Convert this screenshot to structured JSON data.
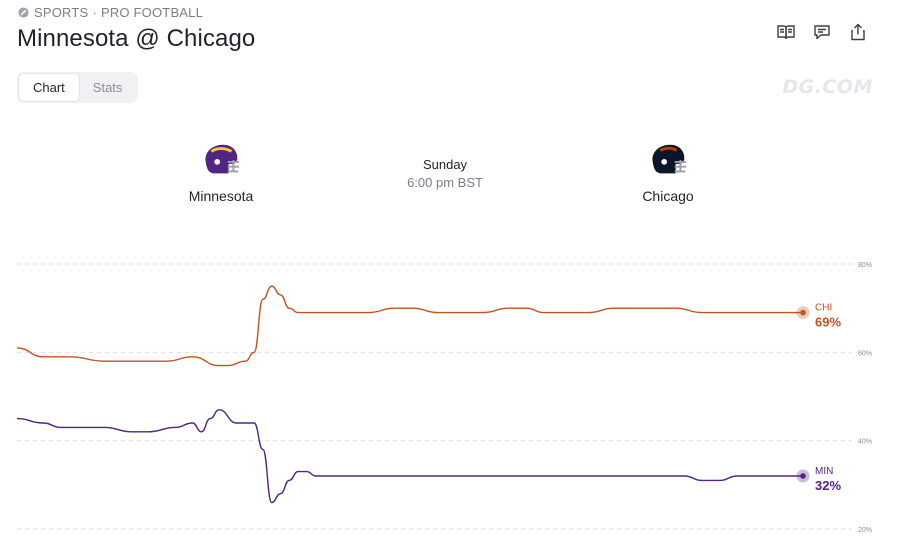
{
  "breadcrumb": {
    "category": "SPORTS",
    "separator": "·",
    "league": "PRO FOOTBALL",
    "icon": "football-icon"
  },
  "title": "Minnesota @ Chicago",
  "tabs": [
    {
      "label": "Chart",
      "active": true
    },
    {
      "label": "Stats",
      "active": false
    }
  ],
  "watermark": "DG.COM",
  "header_icons": [
    "book-icon",
    "comment-icon",
    "share-icon"
  ],
  "game": {
    "away": {
      "name": "Minnesota",
      "helmet_color": "#4f2683",
      "accent": "#ffc62f"
    },
    "home": {
      "name": "Chicago",
      "helmet_color": "#0b162a",
      "accent": "#c83803"
    },
    "day": "Sunday",
    "time": "6:00 pm BST"
  },
  "colors": {
    "chi": "#c2541f",
    "min": "#4f2683",
    "grid": "#dcdee2"
  },
  "chart_data": {
    "type": "line",
    "ylim": [
      20,
      80
    ],
    "yticks": [
      "80%",
      "60%",
      "40%",
      "20%"
    ],
    "grid": true,
    "legend": "end-of-line labels",
    "series": [
      {
        "name": "CHI",
        "label": "69%",
        "color": "#c2541f",
        "x": [
          0,
          3,
          6,
          10,
          15,
          17,
          20,
          23,
          24,
          26,
          27,
          28,
          29,
          30,
          31,
          32,
          33,
          34,
          35,
          37,
          40,
          43,
          45,
          48,
          50,
          53,
          56,
          58,
          60,
          62,
          65,
          68,
          70,
          72,
          75,
          78,
          79,
          80,
          82,
          85,
          88,
          89.5
        ],
        "y": [
          61,
          59,
          59,
          58,
          58,
          58,
          59,
          57,
          57,
          58,
          60,
          72,
          75,
          73,
          70,
          69,
          69,
          69,
          69,
          69,
          69,
          70,
          70,
          69,
          69,
          69,
          70,
          70,
          69,
          69,
          69,
          70,
          70,
          70,
          70,
          69,
          69,
          69,
          69,
          69,
          69,
          69
        ]
      },
      {
        "name": "MIN",
        "label": "32%",
        "color": "#4f2683",
        "x": [
          0,
          3,
          5,
          10,
          13,
          15,
          18,
          20,
          21,
          22,
          23,
          25,
          26,
          27,
          28,
          29,
          30,
          31,
          32,
          33,
          34,
          35,
          38,
          45,
          50,
          55,
          60,
          65,
          70,
          71,
          74,
          76,
          78,
          79,
          80,
          82,
          85,
          89.5
        ],
        "y": [
          45,
          44,
          43,
          43,
          42,
          42,
          43,
          44,
          42,
          45,
          47,
          44,
          44,
          44,
          38,
          26,
          28,
          31,
          33,
          33,
          32,
          32,
          32,
          32,
          32,
          32,
          32,
          32,
          32,
          32,
          32,
          32,
          31,
          31,
          31,
          32,
          32,
          32
        ]
      }
    ]
  }
}
